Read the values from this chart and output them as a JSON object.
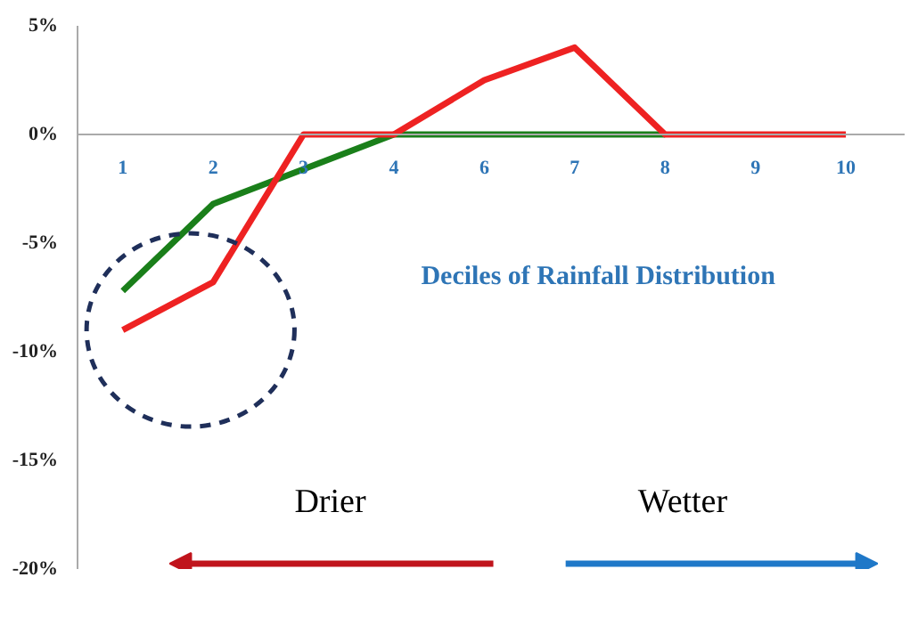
{
  "chart_data": {
    "type": "line",
    "categories": [
      "1",
      "2",
      "3",
      "4",
      "6",
      "7",
      "8",
      "9",
      "10"
    ],
    "series": [
      {
        "color": "#1a7f1a",
        "values": [
          -7.2,
          -3.2,
          -1.6,
          0,
          0,
          0,
          0,
          null,
          null
        ]
      },
      {
        "color": "#ee2222",
        "values": [
          -9.0,
          -6.8,
          0,
          0,
          2.5,
          4.0,
          0,
          0,
          0
        ]
      }
    ],
    "ylim": [
      -20,
      5
    ],
    "yticks": [
      {
        "value": -20,
        "label": "-20%"
      },
      {
        "value": -15,
        "label": "-15%"
      },
      {
        "value": -10,
        "label": "-10%"
      },
      {
        "value": -5,
        "label": "-5%"
      },
      {
        "value": 0,
        "label": "0%"
      },
      {
        "value": 5,
        "label": "5%"
      }
    ],
    "annotations": [
      "Deciles of Rainfall Distribution",
      "Drier",
      "Wetter"
    ],
    "grid": false,
    "marker": "none",
    "line_style": "solid"
  }
}
